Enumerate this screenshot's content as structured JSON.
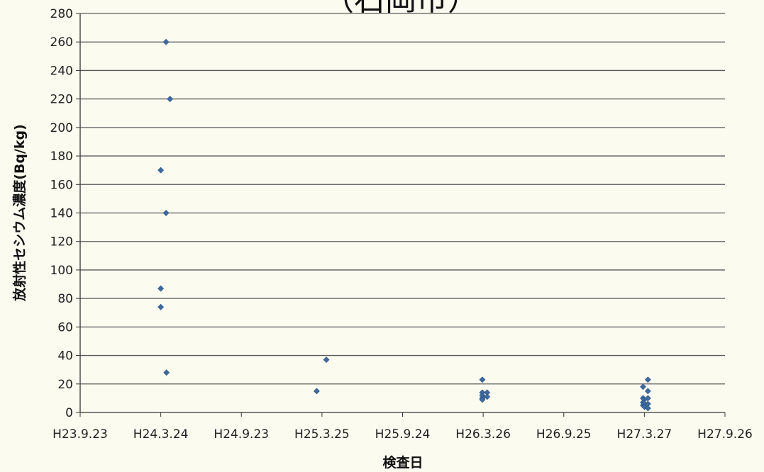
{
  "chart_data": {
    "type": "scatter",
    "title": "（石岡市）",
    "xlabel": "検査日",
    "ylabel": "放射性セシウム濃度(Bq/kg)",
    "xlim": [
      "H23.9.23",
      "H27.9.26"
    ],
    "ylim": [
      0,
      280
    ],
    "yticks": [
      0,
      20,
      40,
      60,
      80,
      100,
      120,
      140,
      160,
      180,
      200,
      220,
      240,
      260,
      280
    ],
    "xticks": [
      "H23.9.23",
      "H24.3.24",
      "H24.9.23",
      "H25.3.25",
      "H25.9.24",
      "H26.3.26",
      "H26.9.25",
      "H27.3.27",
      "H27.9.26"
    ],
    "grid": true,
    "legend": "none",
    "marker_color": "#3e6aa0",
    "series": [
      {
        "points": [
          {
            "x": "H24.3.24",
            "y": 170
          },
          {
            "x": "H24.3.24",
            "y": 87
          },
          {
            "x": "H24.3.24",
            "y": 74
          },
          {
            "x": "H24.4.5",
            "y": 260
          },
          {
            "x": "H24.4.5",
            "y": 140
          },
          {
            "x": "H24.4.6",
            "y": 28
          },
          {
            "x": "H24.4.14",
            "y": 220
          },
          {
            "x": "H25.3.13",
            "y": 15
          },
          {
            "x": "H25.4.4",
            "y": 37
          },
          {
            "x": "H26.3.24",
            "y": 23
          },
          {
            "x": "H26.3.24",
            "y": 14
          },
          {
            "x": "H26.3.24",
            "y": 12
          },
          {
            "x": "H26.3.24",
            "y": 10
          },
          {
            "x": "H26.3.24",
            "y": 9
          },
          {
            "x": "H26.4.4",
            "y": 14
          },
          {
            "x": "H26.4.4",
            "y": 11
          },
          {
            "x": "H27.3.24",
            "y": 18
          },
          {
            "x": "H27.3.24",
            "y": 10
          },
          {
            "x": "H27.3.24",
            "y": 7
          },
          {
            "x": "H27.3.24",
            "y": 5
          },
          {
            "x": "H27.3.27",
            "y": 9
          },
          {
            "x": "H27.3.27",
            "y": 6
          },
          {
            "x": "H27.3.27",
            "y": 4
          },
          {
            "x": "H27.4.4",
            "y": 23
          },
          {
            "x": "H27.4.4",
            "y": 15
          },
          {
            "x": "H27.4.4",
            "y": 10
          },
          {
            "x": "H27.4.4",
            "y": 6
          },
          {
            "x": "H27.4.4",
            "y": 3
          }
        ]
      }
    ]
  }
}
